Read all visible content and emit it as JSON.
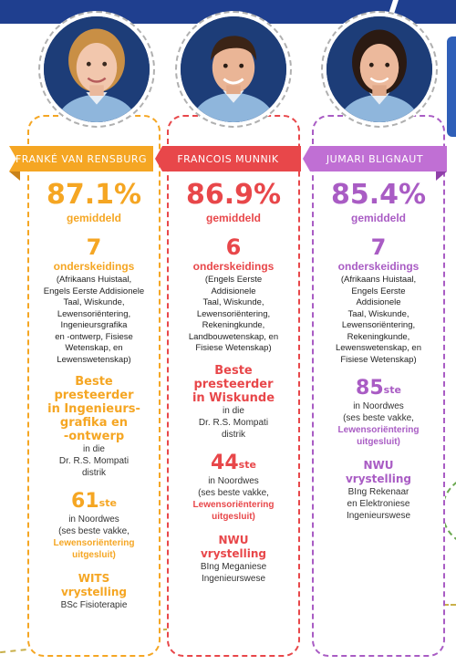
{
  "colors": {
    "orange": "#f5a623",
    "red": "#e8474a",
    "purple": "#a95cc4",
    "navy": "#1f3f8f"
  },
  "students": [
    {
      "name": "FRANKÉ VAN RENSBURG",
      "average": "87.1%",
      "average_label": "gemiddeld",
      "distinctions_count": "7",
      "distinctions_label": "onderskeidings",
      "subjects_lines": [
        "(Afrikaans Huistaal,",
        "Engels Eerste Addisionele",
        "Taal, Wiskunde,",
        "Lewensoriëntering,",
        "Ingenieursgrafika",
        "en -ontwerp, Fisiese",
        "Wetenskap, en",
        "Lewenswetenskap)"
      ],
      "best_lines": [
        "Beste",
        "presteerder",
        "in Ingenieurs-",
        "grafika en",
        "-ontwerp"
      ],
      "best_sub_lines": [
        "in die",
        "Dr. R.S. Mompati",
        "distrik"
      ],
      "rank": "61",
      "rank_suffix": "ste",
      "rank_sub_lines": [
        "in Noordwes",
        "(ses beste vakke,",
        "Lewensoriëntering",
        "uitgesluit)"
      ],
      "exempt_lines": [
        "WITS",
        "vrystelling"
      ],
      "degree_lines": [
        "BSc Fisioterapie"
      ]
    },
    {
      "name": "FRANCOIS MUNNIK",
      "average": "86.9%",
      "average_label": "gemiddeld",
      "distinctions_count": "6",
      "distinctions_label": "onderskeidings",
      "subjects_lines": [
        "(Engels Eerste",
        "Addisionele",
        "Taal, Wiskunde,",
        "Lewensoriëntering,",
        "Rekeningkunde,",
        "Landbouwetenskap, en",
        "Fisiese Wetenskap)"
      ],
      "best_lines": [
        "Beste",
        "presteerder",
        "in Wiskunde"
      ],
      "best_sub_lines": [
        "in die",
        "Dr. R.S. Mompati",
        "distrik"
      ],
      "rank": "44",
      "rank_suffix": "ste",
      "rank_sub_lines": [
        "in Noordwes",
        "(ses beste vakke,",
        "Lewensoriëntering",
        "uitgesluit)"
      ],
      "exempt_lines": [
        "NWU",
        "vrystelling"
      ],
      "degree_lines": [
        "BIng Meganiese",
        "Ingenieurswese"
      ]
    },
    {
      "name": "JUMARI BLIGNAUT",
      "average": "85.4%",
      "average_label": "gemiddeld",
      "distinctions_count": "7",
      "distinctions_label": "onderskeidings",
      "subjects_lines": [
        "(Afrikaans Huistaal,",
        "Engels Eerste",
        "Addisionele",
        "Taal, Wiskunde,",
        "Lewensoriëntering,",
        "Rekeningkunde,",
        "Lewenswetenskap, en",
        "Fisiese Wetenskap)"
      ],
      "best_lines": [],
      "best_sub_lines": [],
      "rank": "85",
      "rank_suffix": "ste",
      "rank_sub_lines": [
        "in Noordwes",
        "(ses beste vakke,",
        "Lewensoriëntering",
        "uitgesluit)"
      ],
      "exempt_lines": [
        "NWU",
        "vrystelling"
      ],
      "degree_lines": [
        "BIng Rekenaar",
        "en Elektroniese",
        "Ingenieurswese"
      ]
    }
  ]
}
